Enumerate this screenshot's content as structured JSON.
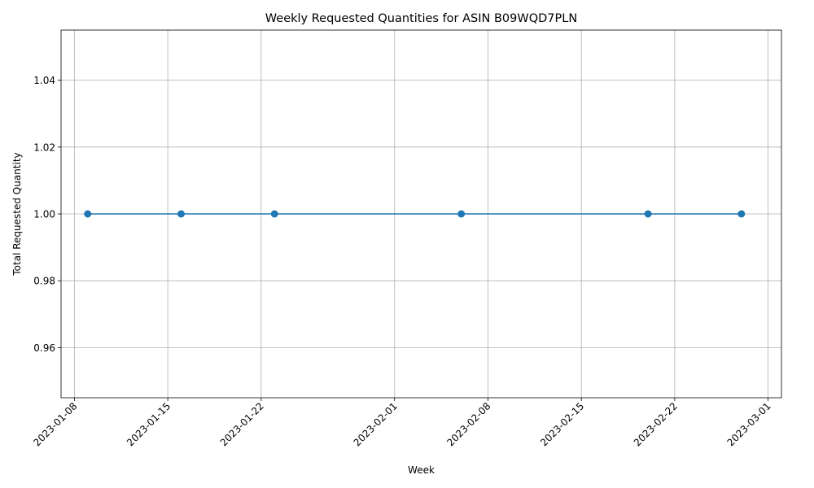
{
  "chart_data": {
    "type": "line",
    "title": "Weekly Requested Quantities for ASIN B09WQD7PLN",
    "xlabel": "Week",
    "ylabel": "Total Requested Quantity",
    "x_type": "date",
    "xlim": [
      "2023-01-07",
      "2023-03-02"
    ],
    "ylim": [
      0.945,
      1.055
    ],
    "x_ticks": [
      "2023-01-08",
      "2023-01-15",
      "2023-01-22",
      "2023-02-01",
      "2023-02-08",
      "2023-02-15",
      "2023-02-22",
      "2023-03-01"
    ],
    "y_ticks": [
      0.96,
      0.98,
      1.0,
      1.02,
      1.04
    ],
    "y_tick_labels": [
      "0.96",
      "0.98",
      "1.00",
      "1.02",
      "1.04"
    ],
    "grid": true,
    "marker": "circle",
    "series": [
      {
        "color": "#1f77b4",
        "x": [
          "2023-01-09",
          "2023-01-16",
          "2023-01-23",
          "2023-02-06",
          "2023-02-20",
          "2023-02-27"
        ],
        "y": [
          1,
          1,
          1,
          1,
          1,
          1
        ]
      }
    ]
  }
}
